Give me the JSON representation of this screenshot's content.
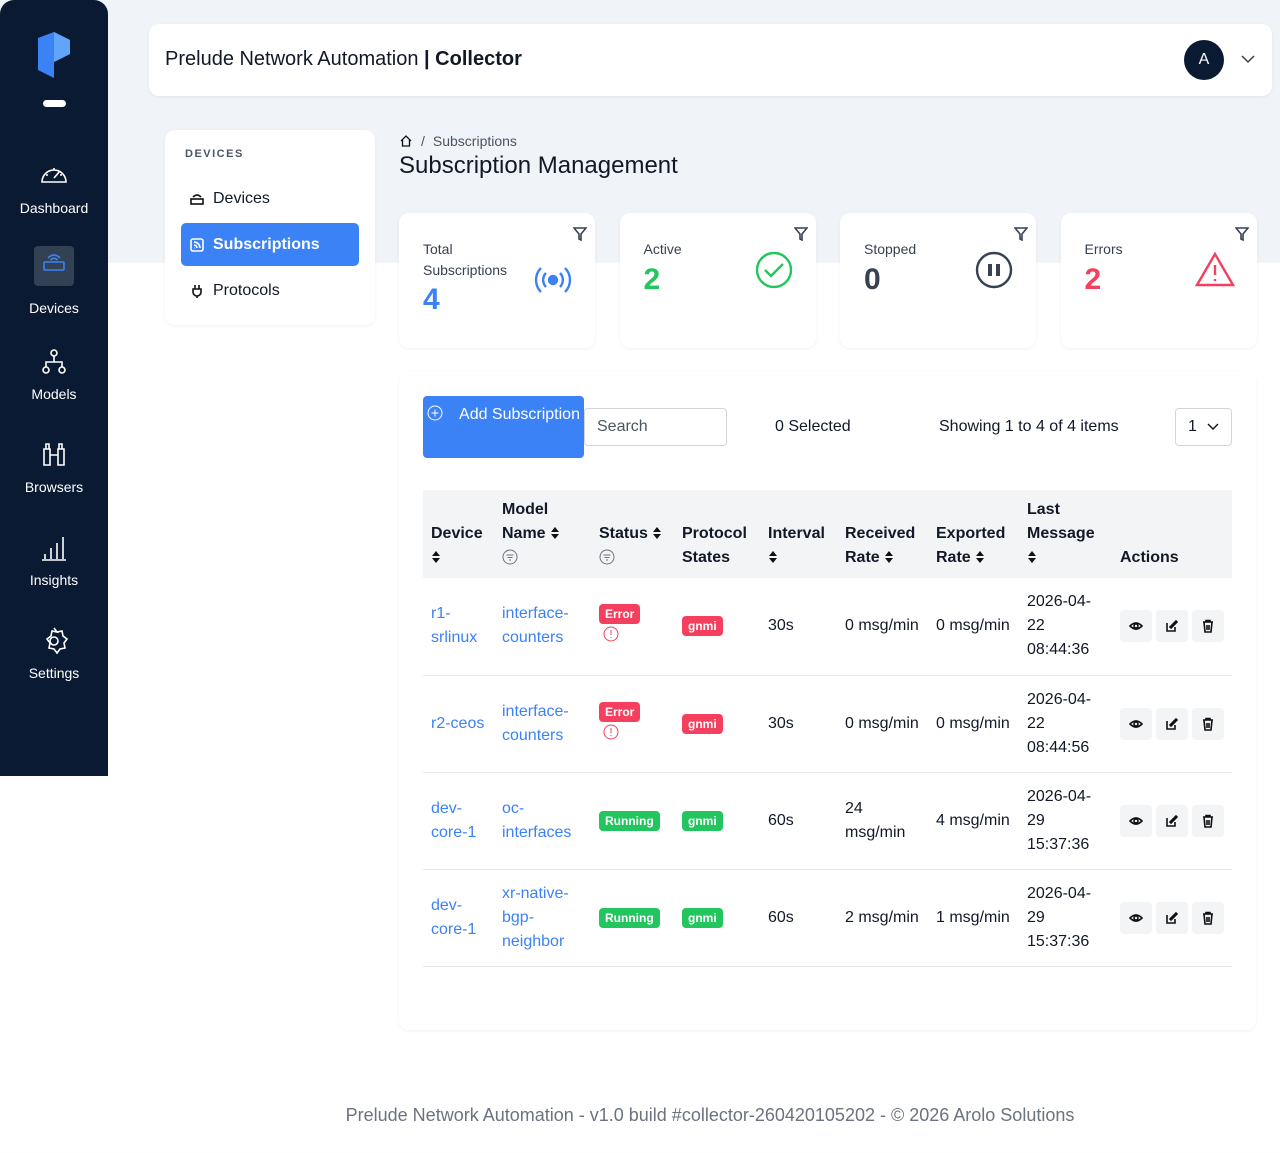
{
  "sidebar": {
    "items": [
      "Dashboard",
      "Devices",
      "Models",
      "Browsers",
      "Insights",
      "Settings"
    ]
  },
  "header": {
    "title": "Prelude Network Automation",
    "subtitle": "| Collector",
    "avatar": "A"
  },
  "subnav": {
    "heading": "DEVICES",
    "items": [
      "Devices",
      "Subscriptions",
      "Protocols"
    ]
  },
  "breadcrumb": "Subscriptions",
  "page_title": "Subscription Management",
  "stats": [
    {
      "label": "Total Subscriptions",
      "value": 4,
      "color": "#3b82f6"
    },
    {
      "label": "Active",
      "value": 2,
      "color": "#22c55e"
    },
    {
      "label": "Stopped",
      "value": 0,
      "color": "#374151"
    },
    {
      "label": "Errors",
      "value": 2,
      "color": "#f43f5e"
    }
  ],
  "toolbar": {
    "add_button": "Add Subscription",
    "search_placeholder": "Search",
    "selected": "0 Selected",
    "showing": "Showing 1 to 4 of 4 items",
    "page_size": "1"
  },
  "table": {
    "headers": [
      "Device",
      "Model Name",
      "Status",
      "Protocol States",
      "Interval",
      "Received Rate",
      "Exported Rate",
      "Last Message",
      "Actions"
    ],
    "rows": [
      {
        "device": "r1-srlinux",
        "model": "interface-counters",
        "status": "Error",
        "protocol": "gnmi",
        "badge_color": "#f43f5e",
        "interval": "30s",
        "received": "0 msg/min",
        "exported": "0 msg/min",
        "last_message": "2026-04-22 08:44:36"
      },
      {
        "device": "r2-ceos",
        "model": "interface-counters",
        "status": "Error",
        "protocol": "gnmi",
        "badge_color": "#f43f5e",
        "interval": "30s",
        "received": "0 msg/min",
        "exported": "0 msg/min",
        "last_message": "2026-04-22 08:44:56"
      },
      {
        "device": "dev-core-1",
        "model": "oc-interfaces",
        "status": "Running",
        "protocol": "gnmi",
        "badge_color": "#22c55e",
        "interval": "60s",
        "received": "24 msg/min",
        "exported": "4 msg/min",
        "last_message": "2026-04-29 15:37:36"
      },
      {
        "device": "dev-core-1",
        "model": "xr-native-bgp-neighbor",
        "status": "Running",
        "protocol": "gnmi",
        "badge_color": "#22c55e",
        "interval": "60s",
        "received": "2 msg/min",
        "exported": "1 msg/min",
        "last_message": "2026-04-29 15:37:36"
      }
    ]
  },
  "footer": "Prelude Network Automation - v1.0 build #collector-260420105202 - © 2026 Arolo Solutions"
}
